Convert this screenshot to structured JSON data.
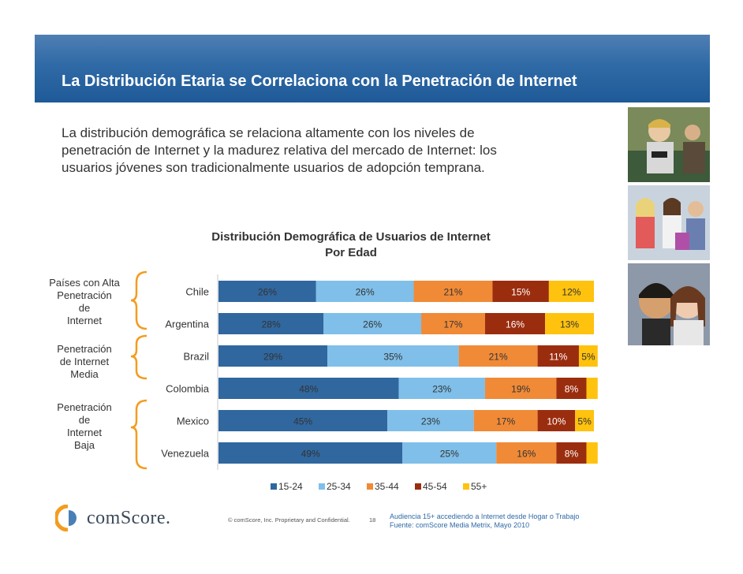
{
  "slide": {
    "title": "La Distribución Etaria se Correlaciona con la Penetración de Internet",
    "intro_lines": [
      "La distribución demográfica se relaciona altamente con los niveles de",
      "penetración de Internet y la madurez relativa del mercado de Internet: los",
      "usuarios jóvenes son tradicionalmente usuarios de adopción temprana."
    ],
    "groups": [
      {
        "lines": [
          "Países con Alta",
          "Penetración",
          "de",
          "Internet"
        ]
      },
      {
        "lines": [
          "Penetración",
          "de Internet",
          "Media"
        ]
      },
      {
        "lines": [
          "Penetración",
          "de",
          "Internet",
          "Baja"
        ]
      }
    ],
    "footer": {
      "brand": "comScore.",
      "copyright": "© comScore, Inc.  Proprietary and Confidential.",
      "page": "18",
      "note_lines": [
        "Audiencia 15+ accediendo a Internet desde Hogar o Trabajo",
        "Fuente:  comScore Media Metrix, Mayo 2010"
      ]
    },
    "colors": {
      "banner": "#2f6aa6",
      "brand_orange": "#f39c1f",
      "brand_blue": "#4a7fb5"
    }
  },
  "chart_data": {
    "type": "bar",
    "orientation": "horizontal",
    "stacked": true,
    "title_lines": [
      "Distribución Demográfica de Usuarios de Internet",
      "Por Edad"
    ],
    "categories": [
      "Chile",
      "Argentina",
      "Brazil",
      "Colombia",
      "Mexico",
      "Venezuela"
    ],
    "series": [
      {
        "name": "15-24",
        "color": "#30679f",
        "values": [
          26,
          28,
          29,
          48,
          45,
          49
        ],
        "labels": [
          "26%",
          "28%",
          "29%",
          "48%",
          "45%",
          "49%"
        ]
      },
      {
        "name": "25-34",
        "color": "#7fbfe9",
        "values": [
          26,
          26,
          35,
          23,
          23,
          25
        ],
        "labels": [
          "26%",
          "26%",
          "35%",
          "23%",
          "23%",
          "25%"
        ]
      },
      {
        "name": "35-44",
        "color": "#f08a37",
        "values": [
          21,
          17,
          21,
          19,
          17,
          16
        ],
        "labels": [
          "21%",
          "17%",
          "21%",
          "19%",
          "17%",
          "16%"
        ]
      },
      {
        "name": "45-54",
        "color": "#9b2d0f",
        "values": [
          15,
          16,
          11,
          8,
          10,
          8
        ],
        "labels": [
          "15%",
          "16%",
          "11%",
          "8%",
          "10%",
          "8%"
        ]
      },
      {
        "name": "55+",
        "color": "#ffc20e",
        "values": [
          12,
          13,
          5,
          3,
          5,
          3
        ],
        "labels": [
          "12%",
          "13%",
          "5%",
          "",
          "5%",
          ""
        ]
      }
    ],
    "xlim": [
      0,
      100
    ],
    "legend": "bottom",
    "grid": false
  }
}
